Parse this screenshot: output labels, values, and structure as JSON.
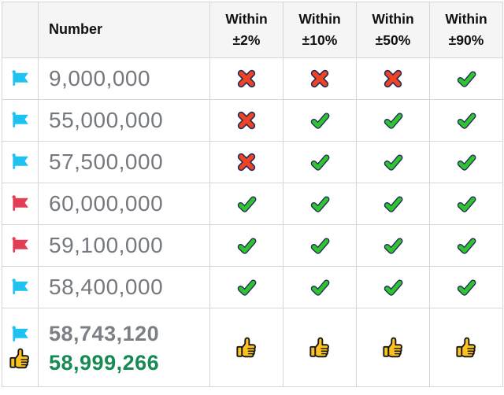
{
  "header": {
    "number_label": "Number",
    "within_columns": [
      {
        "line1": "Within",
        "line2": "±2%"
      },
      {
        "line1": "Within",
        "line2": "±10%"
      },
      {
        "line1": "Within",
        "line2": "±50%"
      },
      {
        "line1": "Within",
        "line2": "±90%"
      }
    ]
  },
  "rows": [
    {
      "flag": "flag-cyan",
      "number": "9,000,000",
      "results": [
        "cross",
        "cross",
        "cross",
        "check"
      ]
    },
    {
      "flag": "flag-cyan",
      "number": "55,000,000",
      "results": [
        "cross",
        "check",
        "check",
        "check"
      ]
    },
    {
      "flag": "flag-cyan",
      "number": "57,500,000",
      "results": [
        "cross",
        "check",
        "check",
        "check"
      ]
    },
    {
      "flag": "flag-red",
      "number": "60,000,000",
      "results": [
        "check",
        "check",
        "check",
        "check"
      ]
    },
    {
      "flag": "flag-red",
      "number": "59,100,000",
      "results": [
        "check",
        "check",
        "check",
        "check"
      ]
    },
    {
      "flag": "flag-cyan",
      "number": "58,400,000",
      "results": [
        "check",
        "check",
        "check",
        "check"
      ]
    }
  ],
  "summary": {
    "flag": "flag-cyan",
    "badge": "thumbs-up",
    "guess": "58,743,120",
    "actual": "58,999,266",
    "results": [
      "thumbs-up",
      "thumbs-up",
      "thumbs-up",
      "thumbs-up"
    ]
  },
  "colors": {
    "flag_cyan": "#1fc3f1",
    "flag_red": "#e23e55",
    "check_green": "#2fc42f",
    "cross_red": "#ee4424",
    "icon_outline": "#232a5c",
    "thumb_yellow": "#fcc21f",
    "thumb_outline": "#151515",
    "number_gray": "#75797f",
    "summary_guess_gray": "#7b7f86",
    "summary_actual_green": "#178a53",
    "header_text": "#111111",
    "header_bg": "#f5f5f6",
    "grid_line": "#d6d6d6",
    "page_bg": "#ffffff"
  }
}
